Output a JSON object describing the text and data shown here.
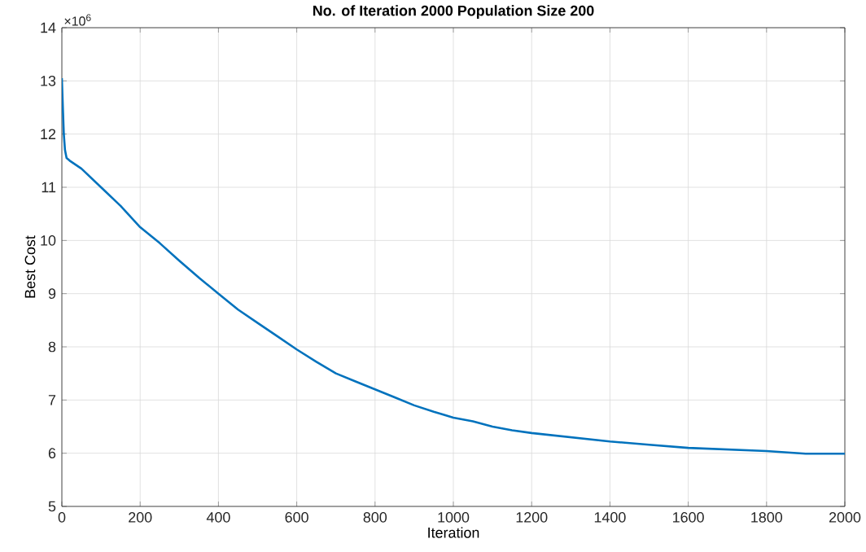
{
  "chart_data": {
    "type": "line",
    "title": "No. of Iteration 2000 Population Size 200",
    "xlabel": "Iteration",
    "ylabel": "Best Cost",
    "annotations": [
      "×10$^{6}$"
    ],
    "x": [
      0,
      3,
      5,
      8,
      12,
      20,
      50,
      100,
      150,
      200,
      250,
      300,
      350,
      400,
      450,
      500,
      550,
      600,
      650,
      700,
      750,
      800,
      850,
      900,
      950,
      1000,
      1050,
      1100,
      1150,
      1200,
      1300,
      1400,
      1500,
      1600,
      1700,
      1800,
      1900,
      2000
    ],
    "series": [
      {
        "color": "#0072bd",
        "values": [
          13.05,
          12.4,
          12.0,
          11.7,
          11.55,
          11.5,
          11.35,
          11.0,
          10.65,
          10.25,
          9.95,
          9.62,
          9.3,
          9.0,
          8.7,
          8.45,
          8.2,
          7.95,
          7.72,
          7.5,
          7.35,
          7.2,
          7.05,
          6.9,
          6.78,
          6.67,
          6.6,
          6.5,
          6.43,
          6.38,
          6.3,
          6.22,
          6.16,
          6.1,
          6.07,
          6.04,
          5.99,
          5.99
        ]
      }
    ],
    "xlim": [
      0,
      2000
    ],
    "ylim": [
      5,
      14
    ],
    "xticks": [
      0,
      200,
      400,
      600,
      800,
      1000,
      1200,
      1400,
      1600,
      1800,
      2000
    ],
    "yticks": [
      5,
      6,
      7,
      8,
      9,
      10,
      11,
      12,
      13,
      14
    ],
    "grid": true,
    "marker": "none",
    "line_style": "solid"
  }
}
